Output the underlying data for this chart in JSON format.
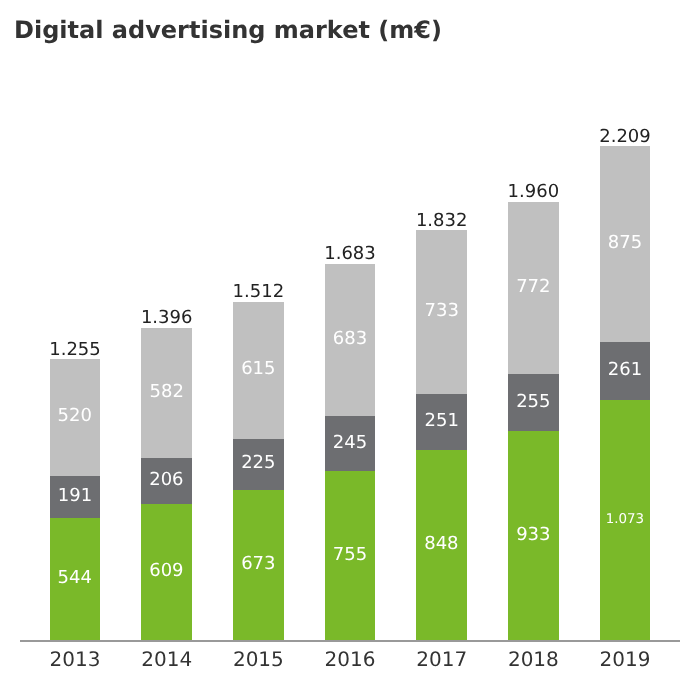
{
  "chart_data": {
    "type": "bar",
    "title": "Digital advertising market (m€)",
    "stacked": true,
    "categories": [
      "2013",
      "2014",
      "2015",
      "2016",
      "2017",
      "2018",
      "2019"
    ],
    "series": [
      {
        "color": "#7ab929",
        "values": [
          544,
          609,
          673,
          755,
          848,
          933,
          1073
        ],
        "value_labels": [
          "544",
          "609",
          "673",
          "755",
          "848",
          "933",
          "1.073"
        ]
      },
      {
        "color": "#6d6e71",
        "values": [
          191,
          206,
          225,
          245,
          251,
          255,
          261
        ],
        "value_labels": [
          "191",
          "206",
          "225",
          "245",
          "251",
          "255",
          "261"
        ]
      },
      {
        "color": "#c0c0c0",
        "values": [
          520,
          582,
          615,
          683,
          733,
          772,
          875
        ],
        "value_labels": [
          "520",
          "582",
          "615",
          "683",
          "733",
          "772",
          "875"
        ]
      }
    ],
    "totals": [
      "1.255",
      "1.396",
      "1.512",
      "1.683",
      "1.832",
      "1.960",
      "2.209"
    ],
    "tick_labels": "x"
  }
}
